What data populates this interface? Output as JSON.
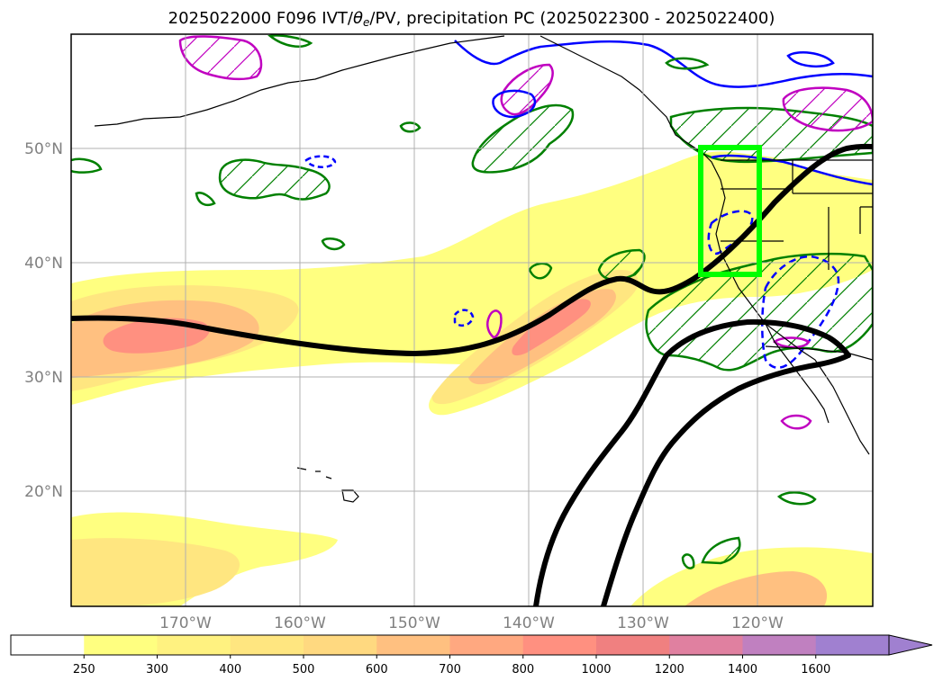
{
  "title": {
    "prefix": "2025022000 F096 IVT/",
    "theta": "θ",
    "theta_sub": "e",
    "suffix": "/PV, precipitation PC (2025022300 - 2025022400)"
  },
  "map": {
    "lat_labels": [
      "50°N",
      "40°N",
      "30°N",
      "20°N"
    ],
    "lon_labels": [
      "170°W",
      "160°W",
      "150°W",
      "140°W",
      "130°W",
      "120°W"
    ],
    "gridlines": true,
    "region_box_color": "#00ff00"
  },
  "colorbar": {
    "ticks": [
      "250",
      "300",
      "400",
      "500",
      "600",
      "700",
      "800",
      "1000",
      "1200",
      "1400",
      "1600"
    ],
    "colors": [
      "#ffffff",
      "#ffff80",
      "#fff280",
      "#ffe680",
      "#ffd980",
      "#ffc080",
      "#ffa880",
      "#ff9080",
      "#f08080",
      "#e080a0",
      "#c080c0",
      "#a080d0"
    ],
    "extend": "max"
  },
  "colors": {
    "theta_e": "#008000",
    "pv_positive": "#0000ff",
    "precip": "#c000c0",
    "jet_axis": "#000000",
    "region_box": "#00ff00"
  }
}
